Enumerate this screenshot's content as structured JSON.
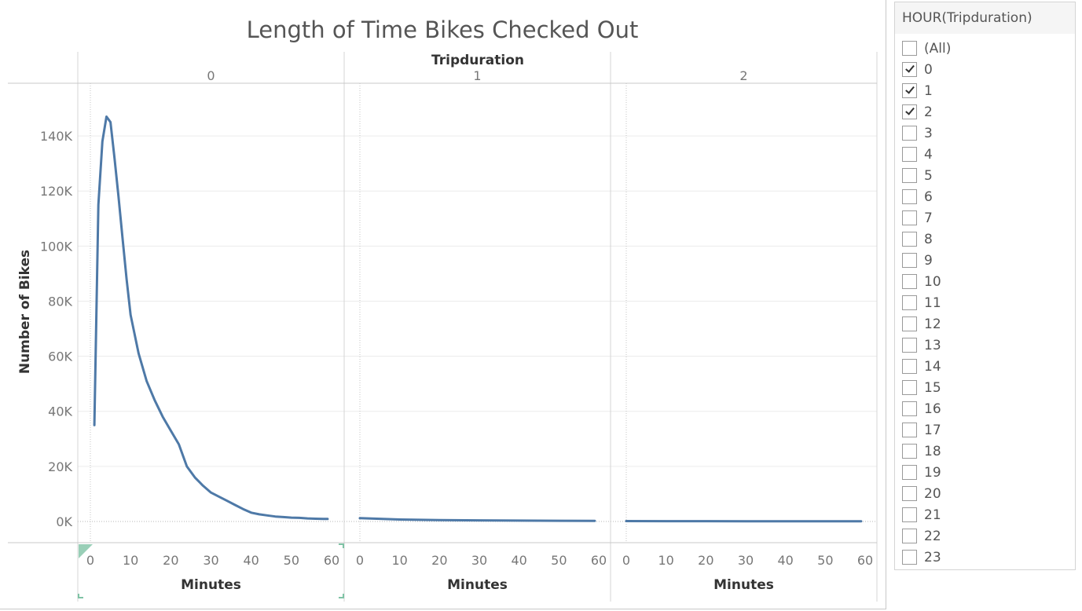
{
  "chart_data": {
    "type": "line",
    "title": "Length of Time Bikes Checked Out",
    "column_header": "Tripduration",
    "ylabel": "Number of Bikes",
    "xlabel": "Minutes",
    "ylim": [
      0,
      150000
    ],
    "yticks": [
      0,
      20000,
      40000,
      60000,
      80000,
      100000,
      120000,
      140000
    ],
    "ytick_labels": [
      "0K",
      "20K",
      "40K",
      "60K",
      "80K",
      "100K",
      "120K",
      "140K"
    ],
    "xlim": [
      0,
      60
    ],
    "xticks": [
      0,
      10,
      20,
      30,
      40,
      50,
      60
    ],
    "xtick_labels": [
      "0",
      "10",
      "20",
      "30",
      "40",
      "50",
      "60"
    ],
    "line_color": "#4e79a7",
    "panels": [
      {
        "name": "0",
        "x": [
          1,
          2,
          3,
          4,
          5,
          6,
          7,
          8,
          9,
          10,
          12,
          14,
          16,
          18,
          20,
          22,
          24,
          26,
          28,
          30,
          32,
          34,
          36,
          38,
          40,
          42,
          44,
          46,
          48,
          50,
          52,
          54,
          56,
          58,
          59
        ],
        "y": [
          35000,
          115000,
          138000,
          147000,
          145000,
          132000,
          118000,
          103000,
          88000,
          75000,
          61000,
          51000,
          44000,
          38000,
          33000,
          28000,
          20000,
          16000,
          13000,
          10500,
          9000,
          7500,
          6000,
          4500,
          3200,
          2600,
          2200,
          1800,
          1600,
          1400,
          1300,
          1100,
          1000,
          950,
          900
        ]
      },
      {
        "name": "1",
        "x": [
          0,
          10,
          20,
          30,
          40,
          50,
          59
        ],
        "y": [
          1200,
          700,
          500,
          400,
          300,
          250,
          200
        ]
      },
      {
        "name": "2",
        "x": [
          0,
          10,
          20,
          30,
          40,
          50,
          59
        ],
        "y": [
          150,
          120,
          100,
          90,
          80,
          70,
          60
        ]
      }
    ]
  },
  "filter": {
    "title": "HOUR(Tripduration)",
    "items": [
      {
        "label": "(All)",
        "checked": false
      },
      {
        "label": "0",
        "checked": true
      },
      {
        "label": "1",
        "checked": true
      },
      {
        "label": "2",
        "checked": true
      },
      {
        "label": "3",
        "checked": false
      },
      {
        "label": "4",
        "checked": false
      },
      {
        "label": "5",
        "checked": false
      },
      {
        "label": "6",
        "checked": false
      },
      {
        "label": "7",
        "checked": false
      },
      {
        "label": "8",
        "checked": false
      },
      {
        "label": "9",
        "checked": false
      },
      {
        "label": "10",
        "checked": false
      },
      {
        "label": "11",
        "checked": false
      },
      {
        "label": "12",
        "checked": false
      },
      {
        "label": "13",
        "checked": false
      },
      {
        "label": "14",
        "checked": false
      },
      {
        "label": "15",
        "checked": false
      },
      {
        "label": "16",
        "checked": false
      },
      {
        "label": "17",
        "checked": false
      },
      {
        "label": "18",
        "checked": false
      },
      {
        "label": "19",
        "checked": false
      },
      {
        "label": "20",
        "checked": false
      },
      {
        "label": "21",
        "checked": false
      },
      {
        "label": "22",
        "checked": false
      },
      {
        "label": "23",
        "checked": false
      }
    ]
  }
}
